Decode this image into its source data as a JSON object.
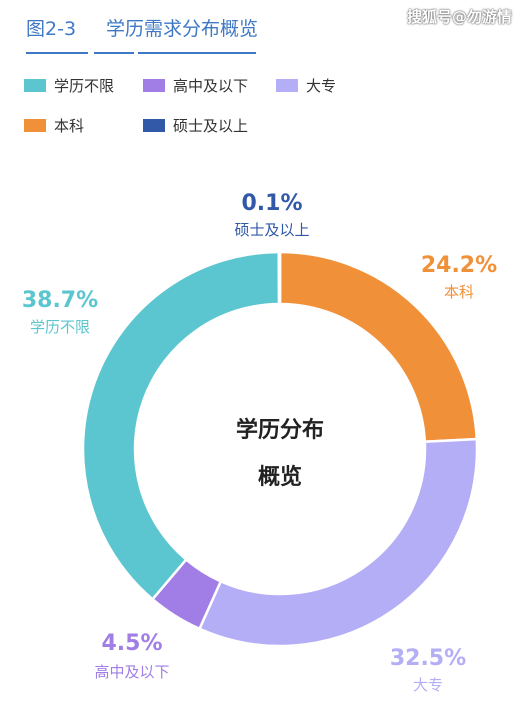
{
  "header": {
    "figure_no": "图2-3",
    "title": "学历需求分布概览",
    "watermark": "搜狐号@勿游情"
  },
  "colors": {
    "accent": "#3f78c4",
    "学历不限": "#5bc6d0",
    "高中及以下": "#a07ee6",
    "大专": "#b3aef5",
    "本科": "#f0913a",
    "硕士及以上": "#3258a8"
  },
  "chart_data": {
    "type": "pie",
    "donut": true,
    "title": "",
    "center_label": [
      "学历分布",
      "概览"
    ],
    "legend_placement": "top-left",
    "categories": [
      "本科",
      "大专",
      "高中及以下",
      "学历不限",
      "硕士及以上"
    ],
    "values": [
      24.2,
      32.5,
      4.5,
      38.7,
      0.1
    ],
    "value_labels": [
      "24.2%",
      "32.5%",
      "4.5%",
      "38.7%",
      "0.1%"
    ],
    "legend": [
      "学历不限",
      "高中及以下",
      "大专",
      "本科",
      "硕士及以上"
    ]
  }
}
